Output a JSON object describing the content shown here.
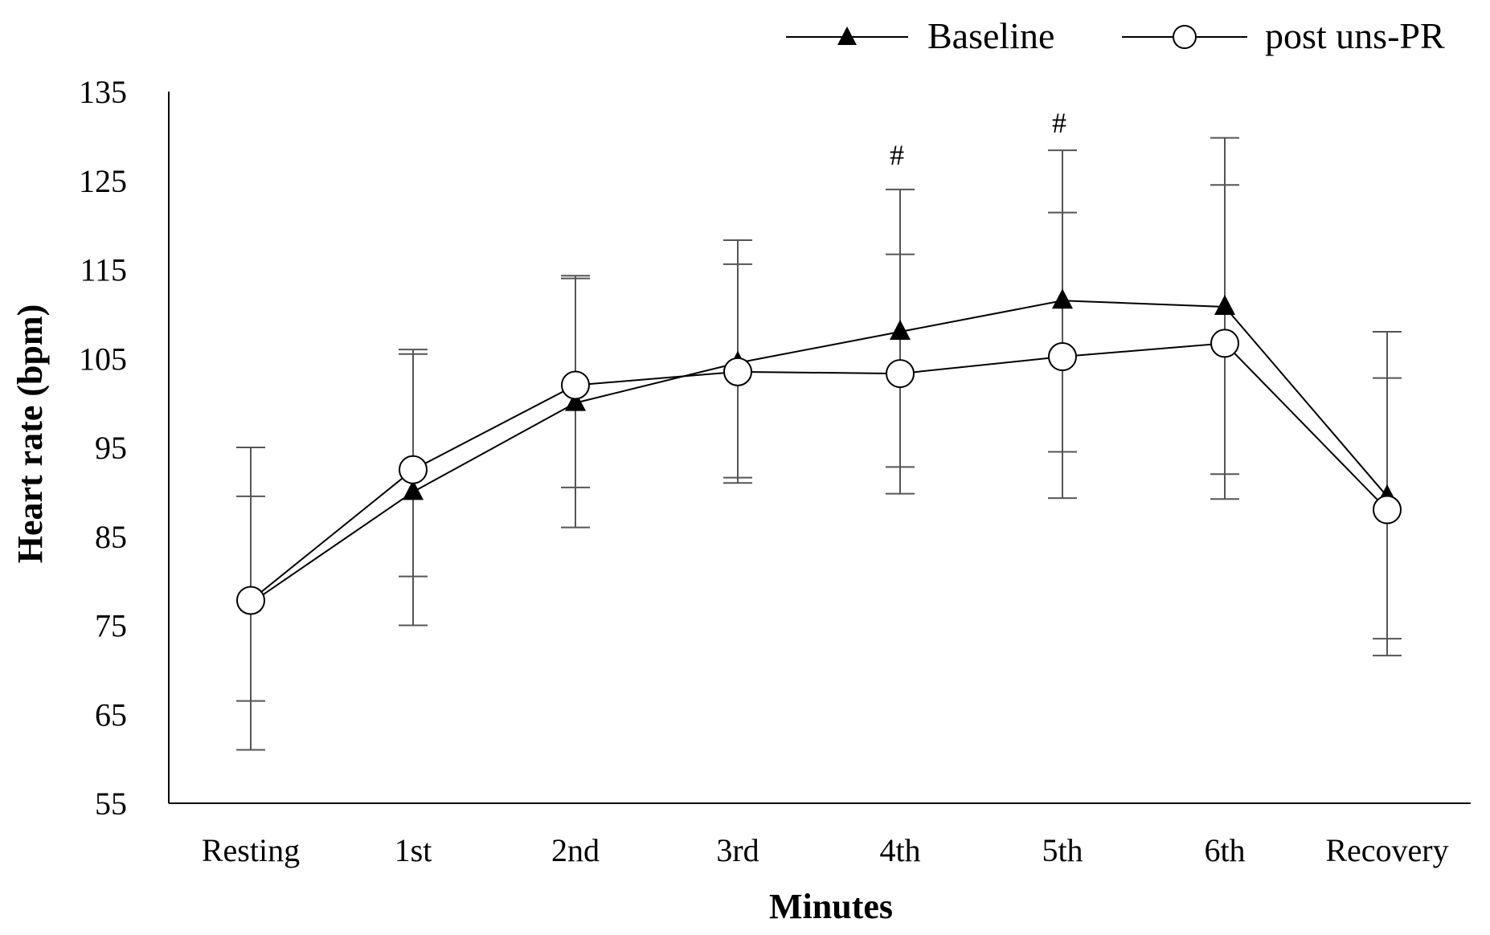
{
  "chart_data": {
    "type": "line",
    "title": "",
    "xlabel": "Minutes",
    "ylabel": "Heart rate (bpm)",
    "categories": [
      "Resting",
      "1st",
      "2nd",
      "3rd",
      "4th",
      "5th",
      "6th",
      "Recovery"
    ],
    "ylim": [
      55,
      135
    ],
    "yticks": [
      55,
      65,
      75,
      85,
      95,
      105,
      115,
      125,
      135
    ],
    "grid": false,
    "legend_position": "top-right",
    "series": [
      {
        "name": "Baseline",
        "marker": "triangle",
        "values": [
          77.5,
          90,
          100,
          104.5,
          108,
          111.5,
          110.8,
          89.5
        ],
        "error_low": [
          61,
          75,
          86,
          91,
          89.8,
          94.5,
          92,
          71.6
        ],
        "error_high": [
          95,
          106,
          114.3,
          118.3,
          124,
          128.4,
          129.8,
          108
        ]
      },
      {
        "name": "post uns-PR",
        "marker": "circle",
        "values": [
          77.8,
          92.5,
          102,
          103.5,
          103.3,
          105.2,
          106.7,
          88
        ],
        "error_low": [
          66.5,
          80.5,
          90.5,
          91.6,
          92.8,
          89.3,
          89.2,
          73.5
        ],
        "error_high": [
          89.5,
          105.5,
          114,
          115.6,
          116.7,
          121.4,
          124.5,
          102.8
        ]
      }
    ],
    "annotations": [
      {
        "category": "4th",
        "text": "#",
        "y": 126.8
      },
      {
        "category": "5th",
        "text": "#",
        "y": 130.4
      }
    ]
  }
}
